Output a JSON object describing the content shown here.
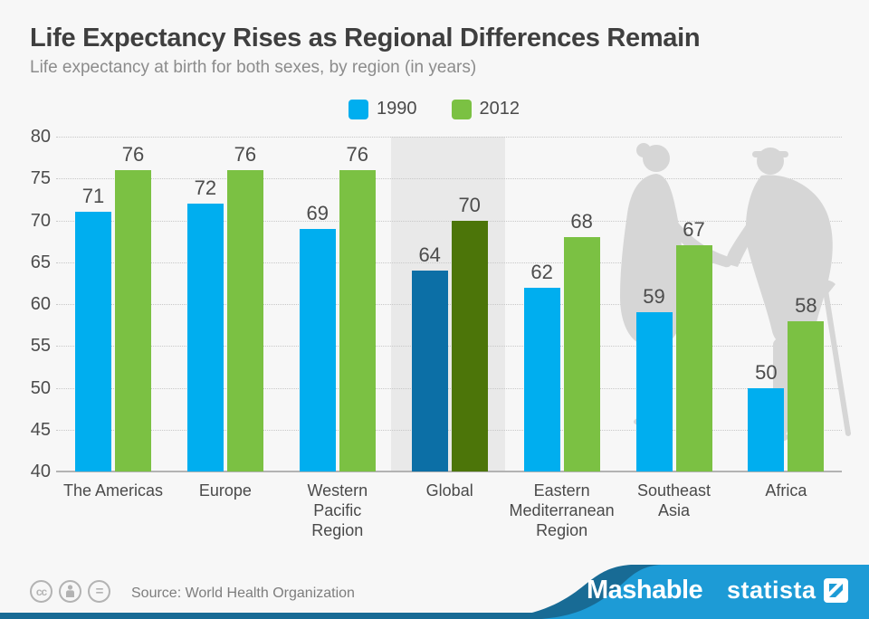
{
  "header": {
    "title": "Life Expectancy Rises as Regional Differences Remain",
    "subtitle": "Life expectancy at birth for both sexes, by region (in years)"
  },
  "legend": {
    "items": [
      {
        "label": "1990",
        "color": "#00aeef"
      },
      {
        "label": "2012",
        "color": "#7bc143"
      }
    ]
  },
  "chart_data": {
    "type": "bar",
    "title": "Life Expectancy Rises as Regional Differences Remain",
    "subtitle": "Life expectancy at birth for both sexes, by region (in years)",
    "categories": [
      "The Americas",
      "Europe",
      "Western\nPacific\nRegion",
      "Global",
      "Eastern\nMediterranean\nRegion",
      "Southeast\nAsia",
      "Africa"
    ],
    "series": [
      {
        "name": "1990",
        "color": "#00aeef",
        "highlight_color": "#0c6fa6",
        "values": [
          71,
          72,
          69,
          64,
          62,
          59,
          50
        ]
      },
      {
        "name": "2012",
        "color": "#7bc143",
        "highlight_color": "#4c7509",
        "values": [
          76,
          76,
          76,
          70,
          68,
          67,
          58
        ]
      }
    ],
    "ylim": [
      40,
      80
    ],
    "yticks": [
      40,
      45,
      50,
      55,
      60,
      65,
      70,
      75,
      80
    ],
    "grid": "horizontal-dotted",
    "legend_position": "top-center",
    "highlight_category": "Global",
    "highlight_band_color": "#e9e9e9"
  },
  "decoration": {
    "silhouette_icon": "elderly-couple-with-cane",
    "silhouette_color": "#d6d6d6"
  },
  "footer": {
    "license_icons": [
      {
        "name": "cc-icon",
        "glyph": "cc"
      },
      {
        "name": "attribution-icon",
        "glyph": "person"
      },
      {
        "name": "equal-icon",
        "glyph": "="
      }
    ],
    "source": "Source: World Health Organization",
    "brands": {
      "mashable": "Mashable",
      "statista": "statista"
    },
    "colors": {
      "swoosh_blue": "#1d9bd6",
      "swoosh_dark": "#186b95"
    }
  }
}
